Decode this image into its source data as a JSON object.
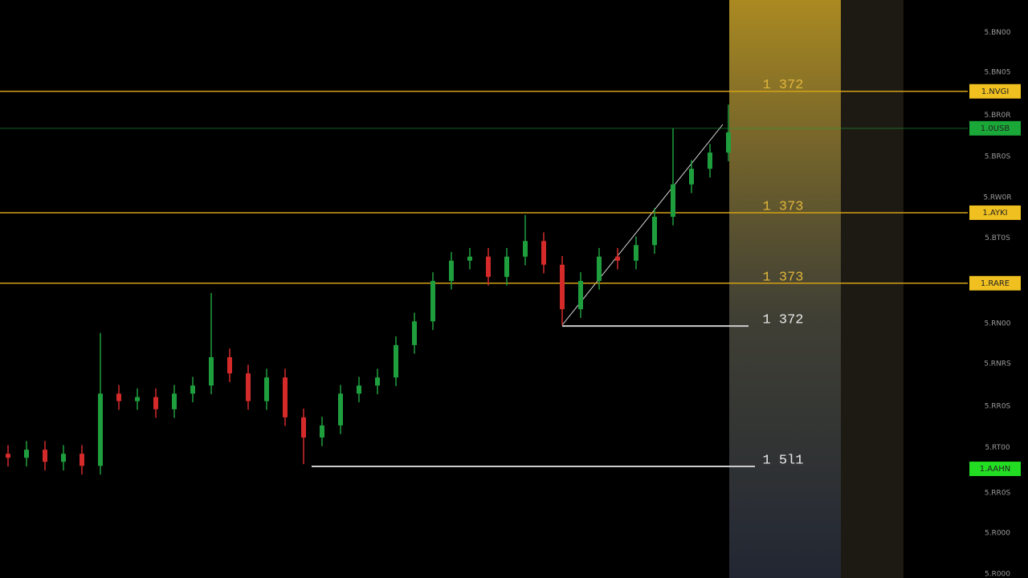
{
  "chart_data": {
    "type": "candlestick",
    "categories": [
      null,
      null,
      null,
      null,
      null,
      null,
      null,
      null,
      null,
      null,
      null,
      null,
      null,
      null,
      null,
      null,
      null,
      null,
      null,
      null,
      null,
      null,
      null,
      null,
      null,
      null,
      null,
      null,
      null,
      null,
      null,
      null,
      null,
      null,
      null,
      null,
      null,
      null,
      null,
      null
    ],
    "open": [
      21.5,
      20.8,
      22.2,
      20.1,
      21.5,
      19.4,
      31.9,
      30.6,
      31.3,
      29.2,
      31.9,
      33.3,
      38.2,
      35.4,
      30.6,
      34.7,
      27.8,
      24.3,
      26.4,
      31.9,
      33.3,
      34.7,
      40.3,
      44.4,
      51.4,
      54.9,
      55.6,
      52.1,
      55.6,
      58.3,
      54.2,
      46.5,
      51.4,
      55.6,
      54.9,
      57.6,
      62.5,
      68.1,
      70.8,
      73.6
    ],
    "high": [
      23.0,
      23.7,
      23.7,
      23.0,
      23.0,
      42.4,
      33.4,
      32.8,
      32.8,
      33.4,
      34.8,
      49.3,
      39.7,
      36.9,
      36.2,
      36.2,
      29.3,
      27.9,
      33.4,
      34.8,
      36.2,
      41.8,
      45.9,
      52.9,
      56.4,
      57.1,
      57.1,
      57.1,
      62.8,
      59.8,
      55.7,
      52.9,
      57.1,
      57.1,
      59.1,
      64.0,
      77.8,
      72.3,
      75.1,
      81.9
    ],
    "low": [
      19.3,
      19.3,
      18.6,
      18.6,
      17.9,
      17.9,
      29.1,
      29.1,
      27.7,
      27.7,
      30.4,
      31.8,
      33.9,
      29.1,
      29.1,
      26.3,
      19.7,
      22.8,
      24.9,
      30.4,
      31.8,
      33.2,
      38.8,
      42.9,
      49.9,
      53.4,
      50.6,
      50.6,
      54.1,
      52.7,
      43.8,
      45.0,
      49.9,
      53.4,
      53.4,
      56.1,
      61.0,
      66.6,
      69.3,
      72.1
    ],
    "close": [
      20.8,
      22.2,
      20.1,
      21.5,
      19.4,
      31.9,
      30.6,
      31.3,
      29.2,
      31.9,
      33.3,
      38.2,
      35.4,
      30.6,
      34.7,
      27.8,
      24.3,
      26.4,
      31.9,
      33.3,
      34.7,
      40.3,
      44.4,
      51.4,
      54.9,
      55.6,
      52.1,
      55.6,
      58.3,
      54.2,
      46.5,
      51.4,
      55.6,
      54.9,
      57.6,
      62.5,
      68.1,
      70.8,
      73.6,
      77.1
    ],
    "up_color": "#1f9e3e",
    "down_color": "#d42a2a",
    "ylim": [
      0,
      100
    ],
    "yticks": [
      {
        "value": 94.4,
        "label": "5.BN00"
      },
      {
        "value": 87.5,
        "label": "5.BN05"
      },
      {
        "value": 80.1,
        "label": "5.BR0R"
      },
      {
        "value": 72.9,
        "label": "5.BR0S"
      },
      {
        "value": 65.8,
        "label": "5.RW0R"
      },
      {
        "value": 58.8,
        "label": "5.BT0S"
      },
      {
        "value": 44.0,
        "label": "5.RN00"
      },
      {
        "value": 37.1,
        "label": "5.RNRS"
      },
      {
        "value": 29.7,
        "label": "5.RR0S"
      },
      {
        "value": 22.6,
        "label": "5.RT00"
      },
      {
        "value": 14.7,
        "label": "5.RR0S"
      },
      {
        "value": 7.8,
        "label": "5.R000"
      },
      {
        "value": 0.7,
        "label": "5.R000"
      }
    ],
    "levels": [
      {
        "value": 84.2,
        "label": "1 372",
        "tag": "1.NVGI",
        "color": "#d4a017"
      },
      {
        "value": 77.8,
        "tag": "1.0USB",
        "color": "#1f9e3e"
      },
      {
        "value": 63.2,
        "label": "1 373",
        "tag": "1.AYKI",
        "color": "#d4a017"
      },
      {
        "value": 51.0,
        "label": "1 373",
        "tag": "1.RARE",
        "color": "#d4a017"
      },
      {
        "value": 43.6,
        "label": "1 372",
        "color": "#cccccc"
      },
      {
        "value": 19.3,
        "label": "1 5l1",
        "tag": "1.AAHN",
        "color": "#cccccc"
      }
    ]
  }
}
